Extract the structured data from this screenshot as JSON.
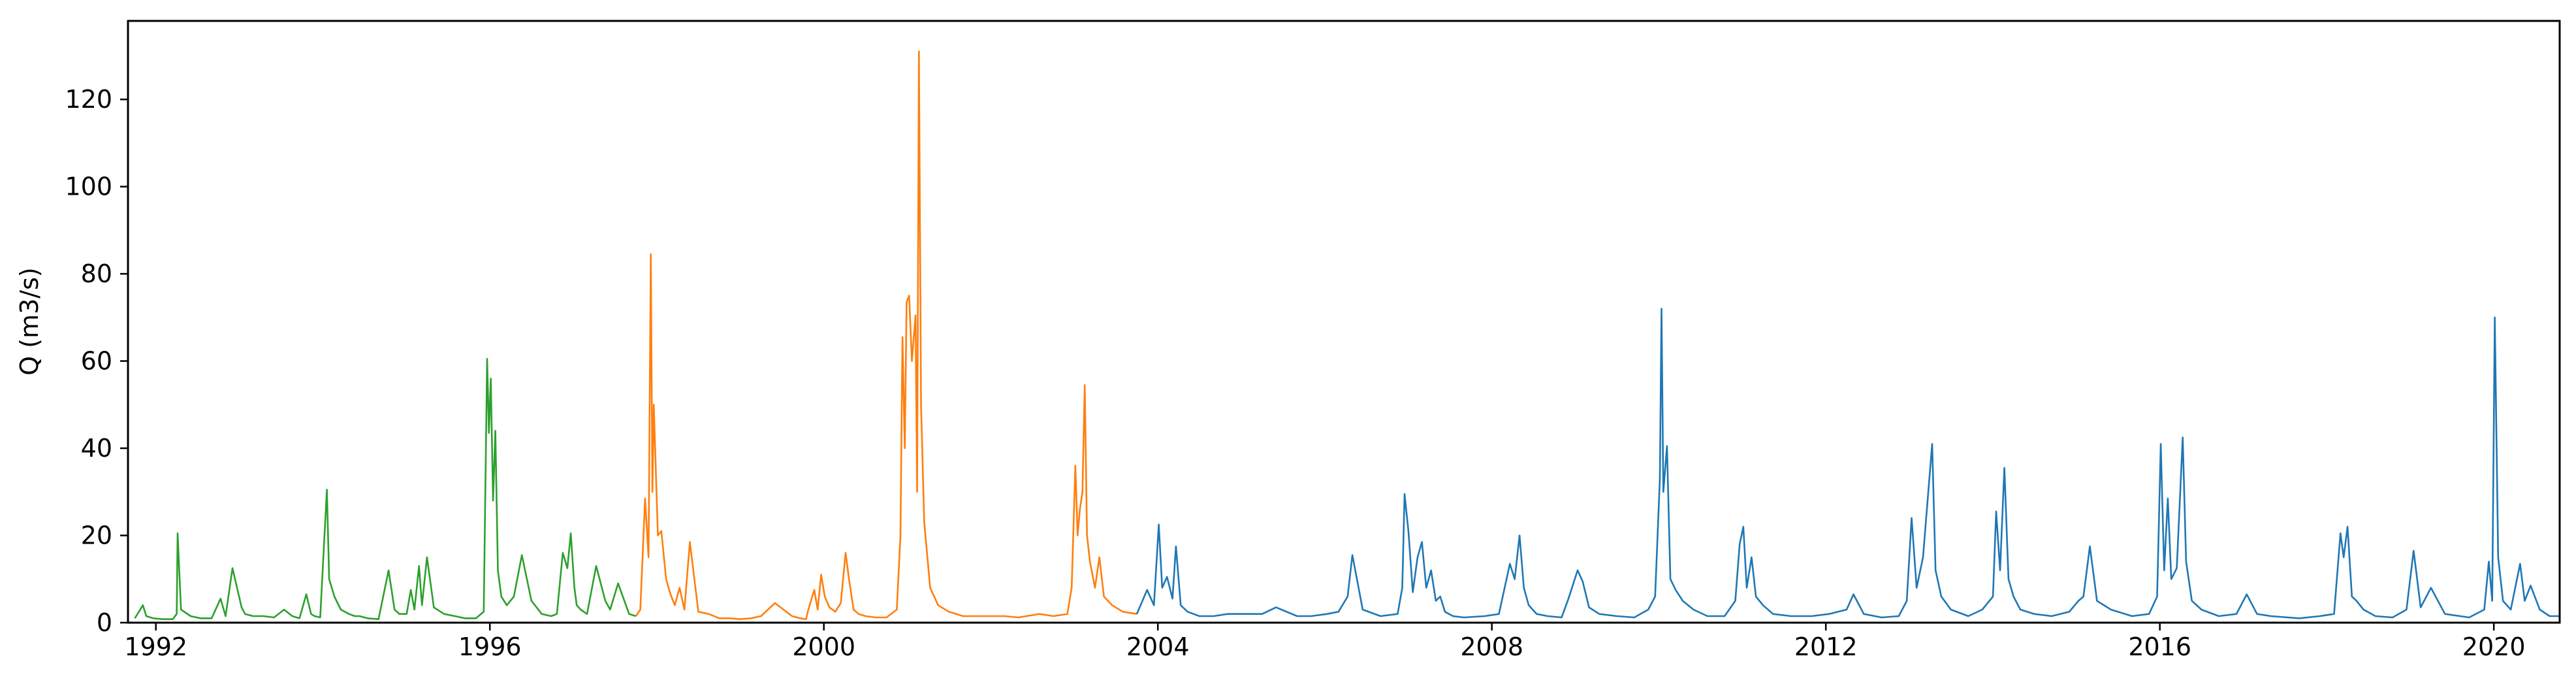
{
  "chart_data": {
    "type": "line",
    "title": "",
    "xlabel": "",
    "ylabel": "Q (m3/s)",
    "xlim": [
      "1991-09-01",
      "2020-10-15"
    ],
    "ylim": [
      0,
      138
    ],
    "x_ticks": [
      "1992",
      "1996",
      "2000",
      "2004",
      "2008",
      "2012",
      "2016",
      "2020"
    ],
    "y_ticks": [
      "0",
      "20",
      "40",
      "60",
      "80",
      "100",
      "120"
    ],
    "grid": false,
    "legend": "none",
    "series": [
      {
        "color": "#2ca02c",
        "x": [
          "1991-10-01",
          "1991-11-05",
          "1991-11-20",
          "1991-12-20",
          "1992-02-01",
          "1992-03-15",
          "1992-04-01",
          "1992-04-05",
          "1992-04-20",
          "1992-06-01",
          "1992-07-15",
          "1992-09-01",
          "1992-10-10",
          "1992-11-01",
          "1992-12-01",
          "1993-01-10",
          "1993-01-25",
          "1993-03-01",
          "1993-04-15",
          "1993-06-01",
          "1993-07-15",
          "1993-08-20",
          "1993-09-20",
          "1993-10-20",
          "1993-11-10",
          "1993-11-25",
          "1993-12-20",
          "1994-01-18",
          "1994-01-28",
          "1994-02-20",
          "1994-03-20",
          "1994-04-25",
          "1994-05-20",
          "1994-06-10",
          "1994-07-15",
          "1994-09-01",
          "1994-10-15",
          "1994-11-10",
          "1994-12-01",
          "1995-01-02",
          "1995-01-20",
          "1995-02-05",
          "1995-02-25",
          "1995-03-10",
          "1995-04-01",
          "1995-05-01",
          "1995-06-15",
          "1995-08-01",
          "1995-09-15",
          "1995-11-01",
          "1995-12-05",
          "1995-12-20",
          "1995-12-28",
          "1996-01-05",
          "1996-01-15",
          "1996-01-25",
          "1996-02-05",
          "1996-02-20",
          "1996-03-15",
          "1996-04-15",
          "1996-05-20",
          "1996-07-01",
          "1996-08-15",
          "1996-09-25",
          "1996-10-20",
          "1996-11-15",
          "1996-12-05",
          "1996-12-20",
          "1997-01-05",
          "1997-01-15",
          "1997-02-01",
          "1997-03-01",
          "1997-04-10",
          "1997-05-20",
          "1997-06-10",
          "1997-07-15",
          "1997-09-01",
          "1997-10-01"
        ],
        "y": [
          1.0,
          4.0,
          1.5,
          1.0,
          0.8,
          0.8,
          2.0,
          20.5,
          3.0,
          1.5,
          1.0,
          1.0,
          5.5,
          1.5,
          12.5,
          3.5,
          2.0,
          1.5,
          1.5,
          1.2,
          3.0,
          1.5,
          1.0,
          6.5,
          2.0,
          1.5,
          1.2,
          30.5,
          10.0,
          6.0,
          3.0,
          2.0,
          1.5,
          1.5,
          1.0,
          0.8,
          12.0,
          3.0,
          2.0,
          2.0,
          7.5,
          3.0,
          13.0,
          4.0,
          15.0,
          3.5,
          2.0,
          1.5,
          1.0,
          1.0,
          2.5,
          60.5,
          43.5,
          56.0,
          28.0,
          44.0,
          12.0,
          6.0,
          4.0,
          6.0,
          15.5,
          5.0,
          2.0,
          1.5,
          2.0,
          16.0,
          12.5,
          20.5,
          8.0,
          4.0,
          3.0,
          2.0,
          13.0,
          5.0,
          3.0,
          9.0,
          2.0,
          1.5
        ]
      },
      {
        "color": "#ff7f0e",
        "x": [
          "1997-10-01",
          "1997-10-20",
          "1997-11-10",
          "1997-11-25",
          "1997-12-05",
          "1997-12-12",
          "1997-12-18",
          "1998-01-05",
          "1998-01-20",
          "1998-02-10",
          "1998-03-01",
          "1998-03-20",
          "1998-04-10",
          "1998-05-01",
          "1998-05-25",
          "1998-07-01",
          "1998-08-15",
          "1998-10-01",
          "1998-11-15",
          "1999-01-01",
          "1999-02-15",
          "1999-04-01",
          "1999-06-01",
          "1999-08-15",
          "1999-09-20",
          "1999-10-15",
          "1999-10-25",
          "1999-11-20",
          "1999-12-05",
          "1999-12-20",
          "2000-01-05",
          "2000-01-25",
          "2000-02-20",
          "2000-03-15",
          "2000-04-05",
          "2000-04-20",
          "2000-05-10",
          "2000-06-01",
          "2000-07-01",
          "2000-08-15",
          "2000-10-01",
          "2000-11-15",
          "2000-12-01",
          "2000-12-10",
          "2000-12-20",
          "2000-12-28",
          "2001-01-08",
          "2001-01-20",
          "2001-02-05",
          "2001-02-12",
          "2001-02-20",
          "2001-03-01",
          "2001-03-15",
          "2001-04-10",
          "2001-05-15",
          "2001-07-01",
          "2001-09-01",
          "2001-11-01",
          "2002-01-15",
          "2002-03-01",
          "2002-05-01",
          "2002-08-01",
          "2002-10-01",
          "2002-12-01",
          "2002-12-20",
          "2003-01-05",
          "2003-01-15",
          "2003-01-25",
          "2003-02-05",
          "2003-02-15",
          "2003-02-25",
          "2003-03-10",
          "2003-04-01",
          "2003-04-20",
          "2003-05-10",
          "2003-06-15",
          "2003-08-01",
          "2003-10-01"
        ],
        "y": [
          1.5,
          3.0,
          28.5,
          15.0,
          84.5,
          30.0,
          50.0,
          20.0,
          21.0,
          10.0,
          6.5,
          4.0,
          8.0,
          3.0,
          18.5,
          2.5,
          2.0,
          1.0,
          1.0,
          0.8,
          1.0,
          1.5,
          4.5,
          1.5,
          1.0,
          0.8,
          3.0,
          7.5,
          3.0,
          11.0,
          6.0,
          3.5,
          2.5,
          4.5,
          16.0,
          10.0,
          3.0,
          2.0,
          1.5,
          1.2,
          1.2,
          3.0,
          20.0,
          65.5,
          40.0,
          73.5,
          75.0,
          60.0,
          70.5,
          30.0,
          131.0,
          50.0,
          23.0,
          8.0,
          4.0,
          2.5,
          1.5,
          1.5,
          1.5,
          1.5,
          1.2,
          2.0,
          1.5,
          2.0,
          8.0,
          36.0,
          20.0,
          26.0,
          30.0,
          54.5,
          20.0,
          14.0,
          8.0,
          15.0,
          6.0,
          4.0,
          2.5,
          2.0
        ]
      },
      {
        "color": "#1f77b4",
        "x": [
          "2003-10-01",
          "2003-11-15",
          "2003-12-15",
          "2004-01-05",
          "2004-01-20",
          "2004-02-10",
          "2004-03-05",
          "2004-03-20",
          "2004-04-10",
          "2004-05-10",
          "2004-07-01",
          "2004-09-01",
          "2004-11-01",
          "2005-01-15",
          "2005-04-01",
          "2005-06-01",
          "2005-09-01",
          "2005-11-01",
          "2006-01-10",
          "2006-03-01",
          "2006-04-10",
          "2006-05-01",
          "2006-06-15",
          "2006-09-01",
          "2006-11-15",
          "2006-12-05",
          "2006-12-15",
          "2007-01-01",
          "2007-01-20",
          "2007-02-10",
          "2007-03-01",
          "2007-03-20",
          "2007-04-10",
          "2007-05-01",
          "2007-05-20",
          "2007-06-10",
          "2007-07-15",
          "2007-09-01",
          "2007-12-01",
          "2008-02-01",
          "2008-03-20",
          "2008-04-10",
          "2008-05-01",
          "2008-05-20",
          "2008-06-10",
          "2008-07-15",
          "2008-09-01",
          "2008-11-01",
          "2008-12-01",
          "2009-01-10",
          "2009-02-01",
          "2009-03-01",
          "2009-04-15",
          "2009-07-01",
          "2009-09-15",
          "2009-11-15",
          "2009-12-15",
          "2010-01-05",
          "2010-01-12",
          "2010-01-20",
          "2010-02-05",
          "2010-02-20",
          "2010-03-15",
          "2010-04-15",
          "2010-06-01",
          "2010-08-01",
          "2010-10-15",
          "2010-12-01",
          "2010-12-20",
          "2011-01-05",
          "2011-01-20",
          "2011-02-10",
          "2011-03-01",
          "2011-04-01",
          "2011-05-15",
          "2011-08-01",
          "2011-11-01",
          "2012-01-15",
          "2012-04-01",
          "2012-05-01",
          "2012-06-15",
          "2012-09-01",
          "2012-11-15",
          "2012-12-20",
          "2013-01-10",
          "2013-02-01",
          "2013-03-01",
          "2013-04-10",
          "2013-04-25",
          "2013-05-20",
          "2013-07-01",
          "2013-09-15",
          "2013-11-15",
          "2014-01-01",
          "2014-01-15",
          "2014-02-01",
          "2014-02-20",
          "2014-03-10",
          "2014-04-01",
          "2014-05-01",
          "2014-07-01",
          "2014-09-15",
          "2014-12-01",
          "2015-01-10",
          "2015-02-01",
          "2015-03-01",
          "2015-04-01",
          "2015-06-01",
          "2015-09-01",
          "2015-11-15",
          "2015-12-20",
          "2016-01-05",
          "2016-01-20",
          "2016-02-05",
          "2016-02-20",
          "2016-03-15",
          "2016-04-10",
          "2016-04-25",
          "2016-05-20",
          "2016-07-01",
          "2016-09-15",
          "2016-12-01",
          "2017-01-15",
          "2017-03-01",
          "2017-05-01",
          "2017-09-01",
          "2017-12-01",
          "2018-02-01",
          "2018-03-01",
          "2018-03-15",
          "2018-04-01",
          "2018-04-20",
          "2018-05-10",
          "2018-06-10",
          "2018-08-01",
          "2018-10-15",
          "2018-12-15",
          "2019-01-15",
          "2019-02-15",
          "2019-04-01",
          "2019-06-01",
          "2019-09-15",
          "2019-11-20",
          "2019-12-10",
          "2019-12-25",
          "2020-01-05",
          "2020-01-20",
          "2020-02-10",
          "2020-03-15",
          "2020-04-25",
          "2020-05-15",
          "2020-06-10",
          "2020-07-20",
          "2020-09-01",
          "2020-10-15"
        ],
        "y": [
          2.0,
          7.5,
          4.0,
          22.5,
          8.0,
          10.5,
          5.5,
          17.5,
          4.0,
          2.5,
          1.5,
          1.5,
          2.0,
          2.0,
          2.0,
          3.5,
          1.5,
          1.5,
          2.0,
          2.5,
          6.0,
          15.5,
          3.0,
          1.5,
          2.0,
          8.0,
          29.5,
          21.0,
          7.0,
          15.0,
          18.5,
          8.0,
          12.0,
          5.0,
          6.0,
          2.5,
          1.5,
          1.2,
          1.5,
          2.0,
          13.5,
          10.0,
          20.0,
          8.0,
          4.0,
          2.0,
          1.5,
          1.2,
          5.5,
          12.0,
          9.5,
          3.5,
          2.0,
          1.5,
          1.2,
          3.0,
          6.0,
          33.0,
          72.0,
          30.0,
          40.5,
          10.0,
          7.5,
          5.0,
          3.0,
          1.5,
          1.5,
          5.0,
          18.0,
          22.0,
          8.0,
          15.0,
          6.0,
          4.0,
          2.0,
          1.5,
          1.5,
          2.0,
          3.0,
          6.5,
          2.0,
          1.2,
          1.5,
          5.0,
          24.0,
          8.0,
          15.0,
          41.0,
          12.0,
          6.0,
          3.0,
          1.5,
          3.0,
          6.0,
          25.5,
          12.0,
          35.5,
          10.0,
          6.0,
          3.0,
          2.0,
          1.5,
          2.5,
          5.0,
          6.0,
          17.5,
          5.0,
          3.0,
          1.5,
          2.0,
          6.0,
          41.0,
          12.0,
          28.5,
          10.0,
          12.5,
          42.5,
          14.0,
          5.0,
          3.0,
          1.5,
          2.0,
          6.5,
          2.0,
          1.5,
          1.0,
          1.5,
          2.0,
          20.5,
          15.0,
          22.0,
          6.0,
          5.0,
          3.0,
          1.5,
          1.2,
          3.0,
          16.5,
          3.5,
          8.0,
          2.0,
          1.2,
          3.0,
          14.0,
          5.0,
          70.0,
          15.0,
          5.0,
          3.0,
          13.5,
          5.0,
          8.5,
          3.0,
          1.5,
          1.5
        ]
      }
    ]
  }
}
